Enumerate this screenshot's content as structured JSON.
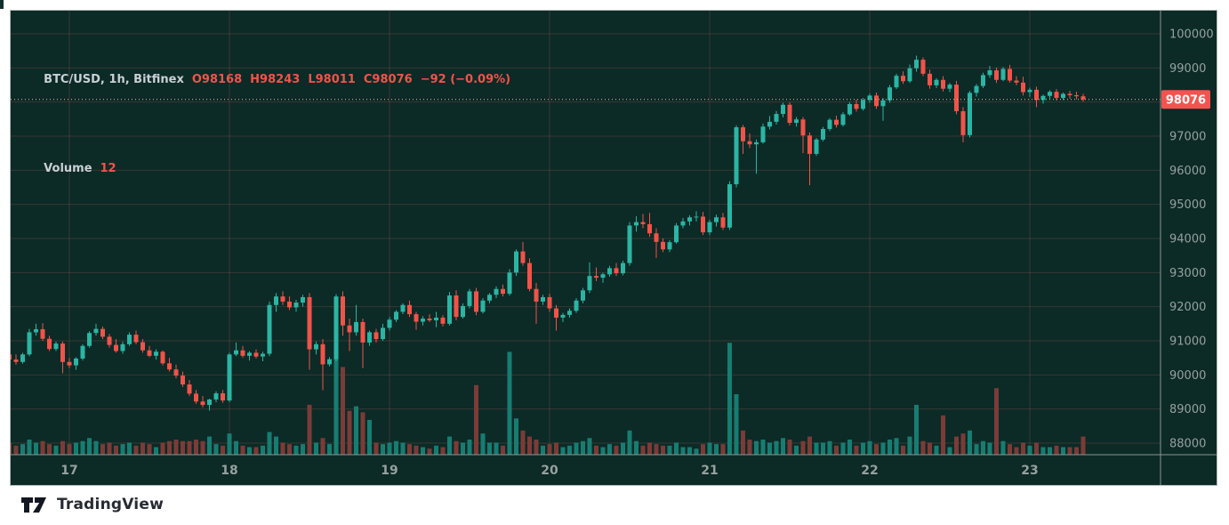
{
  "legend": {
    "symbol": "BTC/USD, 1h, Bitfinex",
    "ohlc": "O98168  H98243  L98011  C98076  −92 (−0.09%)",
    "volume_label": "Volume",
    "volume_value": "12"
  },
  "footer": {
    "brand": "TradingView"
  },
  "price_axis": {
    "tag": "98076"
  },
  "chart_data": {
    "type": "candlestick",
    "symbol": "BTC/USD",
    "interval": "1h",
    "exchange": "Bitfinex",
    "last": {
      "open": 98168,
      "high": 98243,
      "low": 98011,
      "close": 98076,
      "change": -92,
      "change_pct": -0.09,
      "volume": 12
    },
    "y_axis": {
      "min": 88000,
      "max": 100000,
      "step": 1000,
      "tick_labels": [
        "100000",
        "99000",
        "98000",
        "97000",
        "96000",
        "95000",
        "94000",
        "93000",
        "92000",
        "91000",
        "90000",
        "89000",
        "88000"
      ]
    },
    "x_axis": {
      "day_labels": [
        "17",
        "18",
        "19",
        "20",
        "21",
        "22",
        "23"
      ],
      "label_indices": [
        9,
        33,
        57,
        81,
        105,
        129,
        153
      ],
      "candles_per_day": 24
    },
    "colors": {
      "up": "#2bb5a4",
      "down": "#f25349",
      "vol_up": "#177d72",
      "vol_down": "#7c3b37",
      "bg": "#0c2a26",
      "grid": "rgba(235,115,105,0.20)",
      "axis_line": "#8a9793",
      "axis_text": "#97a19e",
      "price_line": "#f2b7ab",
      "tag_bg": "#f4534f",
      "tag_text": "#ffffff"
    },
    "candles": [
      [
        90600,
        90750,
        90350,
        90450,
        8
      ],
      [
        90450,
        90600,
        90300,
        90380,
        6
      ],
      [
        90380,
        90650,
        90330,
        90600,
        7
      ],
      [
        90600,
        91350,
        90550,
        91250,
        10
      ],
      [
        91250,
        91500,
        91150,
        91340,
        8
      ],
      [
        91340,
        91520,
        91000,
        91060,
        9
      ],
      [
        91060,
        91150,
        90700,
        90760,
        7
      ],
      [
        90760,
        90980,
        90700,
        90920,
        6
      ],
      [
        90920,
        90980,
        90050,
        90380,
        9
      ],
      [
        90380,
        90500,
        90200,
        90280,
        7
      ],
      [
        90280,
        90520,
        90150,
        90480,
        8
      ],
      [
        90480,
        90900,
        90420,
        90850,
        9
      ],
      [
        90850,
        91280,
        90800,
        91230,
        11
      ],
      [
        91230,
        91500,
        91150,
        91350,
        9
      ],
      [
        91350,
        91420,
        91050,
        91120,
        7
      ],
      [
        91120,
        91200,
        90800,
        90880,
        8
      ],
      [
        90880,
        91050,
        90650,
        90700,
        6
      ],
      [
        90700,
        90980,
        90620,
        90900,
        7
      ],
      [
        90900,
        91250,
        90850,
        91180,
        8
      ],
      [
        91180,
        91300,
        90900,
        90960,
        6
      ],
      [
        90960,
        91050,
        90650,
        90720,
        8
      ],
      [
        90720,
        90850,
        90520,
        90560,
        7
      ],
      [
        90560,
        90750,
        90450,
        90680,
        5
      ],
      [
        90680,
        90720,
        90280,
        90340,
        8
      ],
      [
        90340,
        90500,
        90100,
        90160,
        9
      ],
      [
        90160,
        90300,
        89900,
        89980,
        10
      ],
      [
        89980,
        90100,
        89650,
        89720,
        9
      ],
      [
        89720,
        89850,
        89380,
        89450,
        9
      ],
      [
        89450,
        89560,
        89150,
        89220,
        10
      ],
      [
        89220,
        89380,
        89050,
        89120,
        9
      ],
      [
        89120,
        89300,
        88950,
        89280,
        12
      ],
      [
        89280,
        89520,
        89200,
        89460,
        7
      ],
      [
        89460,
        89560,
        89180,
        89250,
        6
      ],
      [
        89250,
        90650,
        89200,
        90600,
        14
      ],
      [
        90600,
        90950,
        90550,
        90720,
        9
      ],
      [
        90720,
        90850,
        90500,
        90560,
        6
      ],
      [
        90560,
        90700,
        90420,
        90650,
        5
      ],
      [
        90650,
        90750,
        90480,
        90540,
        5
      ],
      [
        90540,
        90680,
        90400,
        90620,
        6
      ],
      [
        90620,
        92150,
        90550,
        92050,
        15
      ],
      [
        92050,
        92400,
        91850,
        92300,
        12
      ],
      [
        92300,
        92450,
        92050,
        92150,
        8
      ],
      [
        92150,
        92300,
        91900,
        91980,
        7
      ],
      [
        91980,
        92200,
        91850,
        92120,
        6
      ],
      [
        92120,
        92350,
        92000,
        92280,
        7
      ],
      [
        92280,
        92400,
        90150,
        90750,
        33
      ],
      [
        90750,
        90980,
        90600,
        90900,
        8
      ],
      [
        90900,
        91050,
        89550,
        90310,
        11
      ],
      [
        90310,
        90520,
        90250,
        90460,
        7
      ],
      [
        90460,
        92370,
        90400,
        92300,
        72
      ],
      [
        92300,
        92450,
        91150,
        91450,
        58
      ],
      [
        91450,
        91650,
        90700,
        91250,
        29
      ],
      [
        91250,
        92050,
        91150,
        91550,
        32
      ],
      [
        91550,
        91650,
        90200,
        90950,
        28
      ],
      [
        90950,
        91300,
        90850,
        91250,
        23
      ],
      [
        91250,
        91350,
        90950,
        91050,
        8
      ],
      [
        91050,
        91500,
        91000,
        91380,
        7
      ],
      [
        91380,
        91700,
        91300,
        91620,
        8
      ],
      [
        91620,
        91900,
        91550,
        91850,
        9
      ],
      [
        91850,
        92100,
        91780,
        92050,
        8
      ],
      [
        92050,
        92180,
        91700,
        91780,
        7
      ],
      [
        91780,
        91850,
        91320,
        91560,
        6
      ],
      [
        91560,
        91720,
        91450,
        91650,
        5
      ],
      [
        91650,
        91780,
        91550,
        91600,
        4
      ],
      [
        91600,
        91850,
        91400,
        91680,
        6
      ],
      [
        91680,
        91750,
        91420,
        91500,
        5
      ],
      [
        91500,
        92430,
        91450,
        92330,
        12
      ],
      [
        92330,
        92480,
        91600,
        91700,
        9
      ],
      [
        91700,
        92100,
        91650,
        92020,
        8
      ],
      [
        92020,
        92520,
        91950,
        92450,
        10
      ],
      [
        92450,
        92550,
        91750,
        91850,
        46
      ],
      [
        91850,
        92250,
        91800,
        92180,
        14
      ],
      [
        92180,
        92400,
        92100,
        92350,
        8
      ],
      [
        92350,
        92600,
        92250,
        92520,
        8
      ],
      [
        92520,
        92650,
        92300,
        92380,
        6
      ],
      [
        92380,
        93100,
        92320,
        93000,
        68
      ],
      [
        93000,
        93680,
        92900,
        93620,
        24
      ],
      [
        93620,
        93900,
        93200,
        93280,
        16
      ],
      [
        93280,
        93420,
        92450,
        92520,
        12
      ],
      [
        92520,
        92700,
        91500,
        92150,
        10
      ],
      [
        92150,
        92350,
        92050,
        92280,
        6
      ],
      [
        92280,
        92380,
        91850,
        91950,
        7
      ],
      [
        91950,
        92050,
        91300,
        91680,
        8
      ],
      [
        91680,
        91820,
        91550,
        91760,
        5
      ],
      [
        91760,
        91950,
        91680,
        91880,
        6
      ],
      [
        91880,
        92250,
        91820,
        92180,
        8
      ],
      [
        92180,
        92550,
        92100,
        92480,
        9
      ],
      [
        92480,
        93300,
        92400,
        92900,
        11
      ],
      [
        92900,
        93150,
        92750,
        92850,
        6
      ],
      [
        92850,
        93000,
        92700,
        92950,
        5
      ],
      [
        92950,
        93200,
        92880,
        93130,
        7
      ],
      [
        93130,
        93280,
        92900,
        92980,
        6
      ],
      [
        92980,
        93350,
        92920,
        93280,
        8
      ],
      [
        93280,
        94480,
        93200,
        94380,
        16
      ],
      [
        94380,
        94650,
        94200,
        94480,
        9
      ],
      [
        94480,
        94720,
        94300,
        94420,
        6
      ],
      [
        94420,
        94750,
        94050,
        94150,
        8
      ],
      [
        94150,
        94300,
        93430,
        93900,
        7
      ],
      [
        93900,
        94000,
        93600,
        93680,
        6
      ],
      [
        93680,
        93950,
        93600,
        93890,
        6
      ],
      [
        93890,
        94450,
        93850,
        94380,
        8
      ],
      [
        94380,
        94600,
        94300,
        94500,
        5
      ],
      [
        94500,
        94680,
        94380,
        94620,
        5
      ],
      [
        94620,
        94800,
        94500,
        94640,
        4
      ],
      [
        94640,
        94780,
        94100,
        94180,
        7
      ],
      [
        94180,
        94550,
        94100,
        94480,
        8
      ],
      [
        94480,
        94700,
        94350,
        94620,
        7
      ],
      [
        94620,
        94750,
        94250,
        94320,
        7
      ],
      [
        94320,
        95680,
        94250,
        95590,
        74
      ],
      [
        95590,
        97320,
        95500,
        97260,
        40
      ],
      [
        97260,
        97330,
        96480,
        96850,
        16
      ],
      [
        96850,
        97080,
        96650,
        96760,
        10
      ],
      [
        96760,
        96900,
        95900,
        96820,
        9
      ],
      [
        96820,
        97370,
        96780,
        97280,
        10
      ],
      [
        97280,
        97590,
        97200,
        97420,
        8
      ],
      [
        97420,
        97740,
        97340,
        97650,
        9
      ],
      [
        97650,
        97980,
        97550,
        97920,
        11
      ],
      [
        97920,
        97990,
        97310,
        97390,
        10
      ],
      [
        97390,
        97560,
        97280,
        97490,
        6
      ],
      [
        97490,
        97560,
        96500,
        97020,
        9
      ],
      [
        97020,
        97110,
        95560,
        96480,
        12
      ],
      [
        96480,
        96950,
        96420,
        96900,
        8
      ],
      [
        96900,
        97270,
        96850,
        97210,
        8
      ],
      [
        97210,
        97530,
        97150,
        97480,
        9
      ],
      [
        97480,
        97600,
        97250,
        97330,
        6
      ],
      [
        97330,
        97700,
        97280,
        97640,
        8
      ],
      [
        97640,
        98000,
        97600,
        97940,
        10
      ],
      [
        97940,
        98070,
        97720,
        97800,
        6
      ],
      [
        97800,
        98120,
        97750,
        98060,
        8
      ],
      [
        98060,
        98250,
        97980,
        98190,
        9
      ],
      [
        98190,
        98280,
        97800,
        97880,
        7
      ],
      [
        97880,
        98120,
        97450,
        98050,
        8
      ],
      [
        98050,
        98500,
        97980,
        98430,
        10
      ],
      [
        98430,
        98830,
        98380,
        98770,
        11
      ],
      [
        98770,
        98900,
        98530,
        98610,
        6
      ],
      [
        98610,
        99100,
        98560,
        98990,
        12
      ],
      [
        98990,
        99360,
        98890,
        99240,
        33
      ],
      [
        99240,
        99310,
        98760,
        98830,
        9
      ],
      [
        98830,
        98950,
        98390,
        98490,
        8
      ],
      [
        98490,
        98700,
        98410,
        98650,
        6
      ],
      [
        98650,
        98760,
        98310,
        98390,
        26
      ],
      [
        98390,
        98560,
        98290,
        98510,
        5
      ],
      [
        98510,
        98620,
        97640,
        97730,
        12
      ],
      [
        97730,
        97850,
        96820,
        97030,
        14
      ],
      [
        97030,
        98330,
        96960,
        98270,
        16
      ],
      [
        98270,
        98530,
        98160,
        98470,
        7
      ],
      [
        98470,
        98860,
        98410,
        98790,
        9
      ],
      [
        98790,
        99060,
        98710,
        98930,
        8
      ],
      [
        98930,
        99010,
        98560,
        98650,
        44
      ],
      [
        98650,
        99030,
        98610,
        98970,
        9
      ],
      [
        98970,
        99090,
        98570,
        98630,
        7
      ],
      [
        98630,
        98760,
        98490,
        98570,
        5
      ],
      [
        98570,
        98740,
        98190,
        98290,
        8
      ],
      [
        98290,
        98420,
        98150,
        98360,
        6
      ],
      [
        98360,
        98450,
        97850,
        98060,
        8
      ],
      [
        98060,
        98220,
        97950,
        98180,
        5
      ],
      [
        98180,
        98350,
        98100,
        98300,
        5
      ],
      [
        98300,
        98380,
        98050,
        98120,
        6
      ],
      [
        98120,
        98280,
        98060,
        98240,
        5
      ],
      [
        98240,
        98330,
        98100,
        98200,
        5
      ],
      [
        98200,
        98300,
        98080,
        98168,
        5
      ],
      [
        98168,
        98243,
        98011,
        98076,
        12
      ]
    ]
  }
}
